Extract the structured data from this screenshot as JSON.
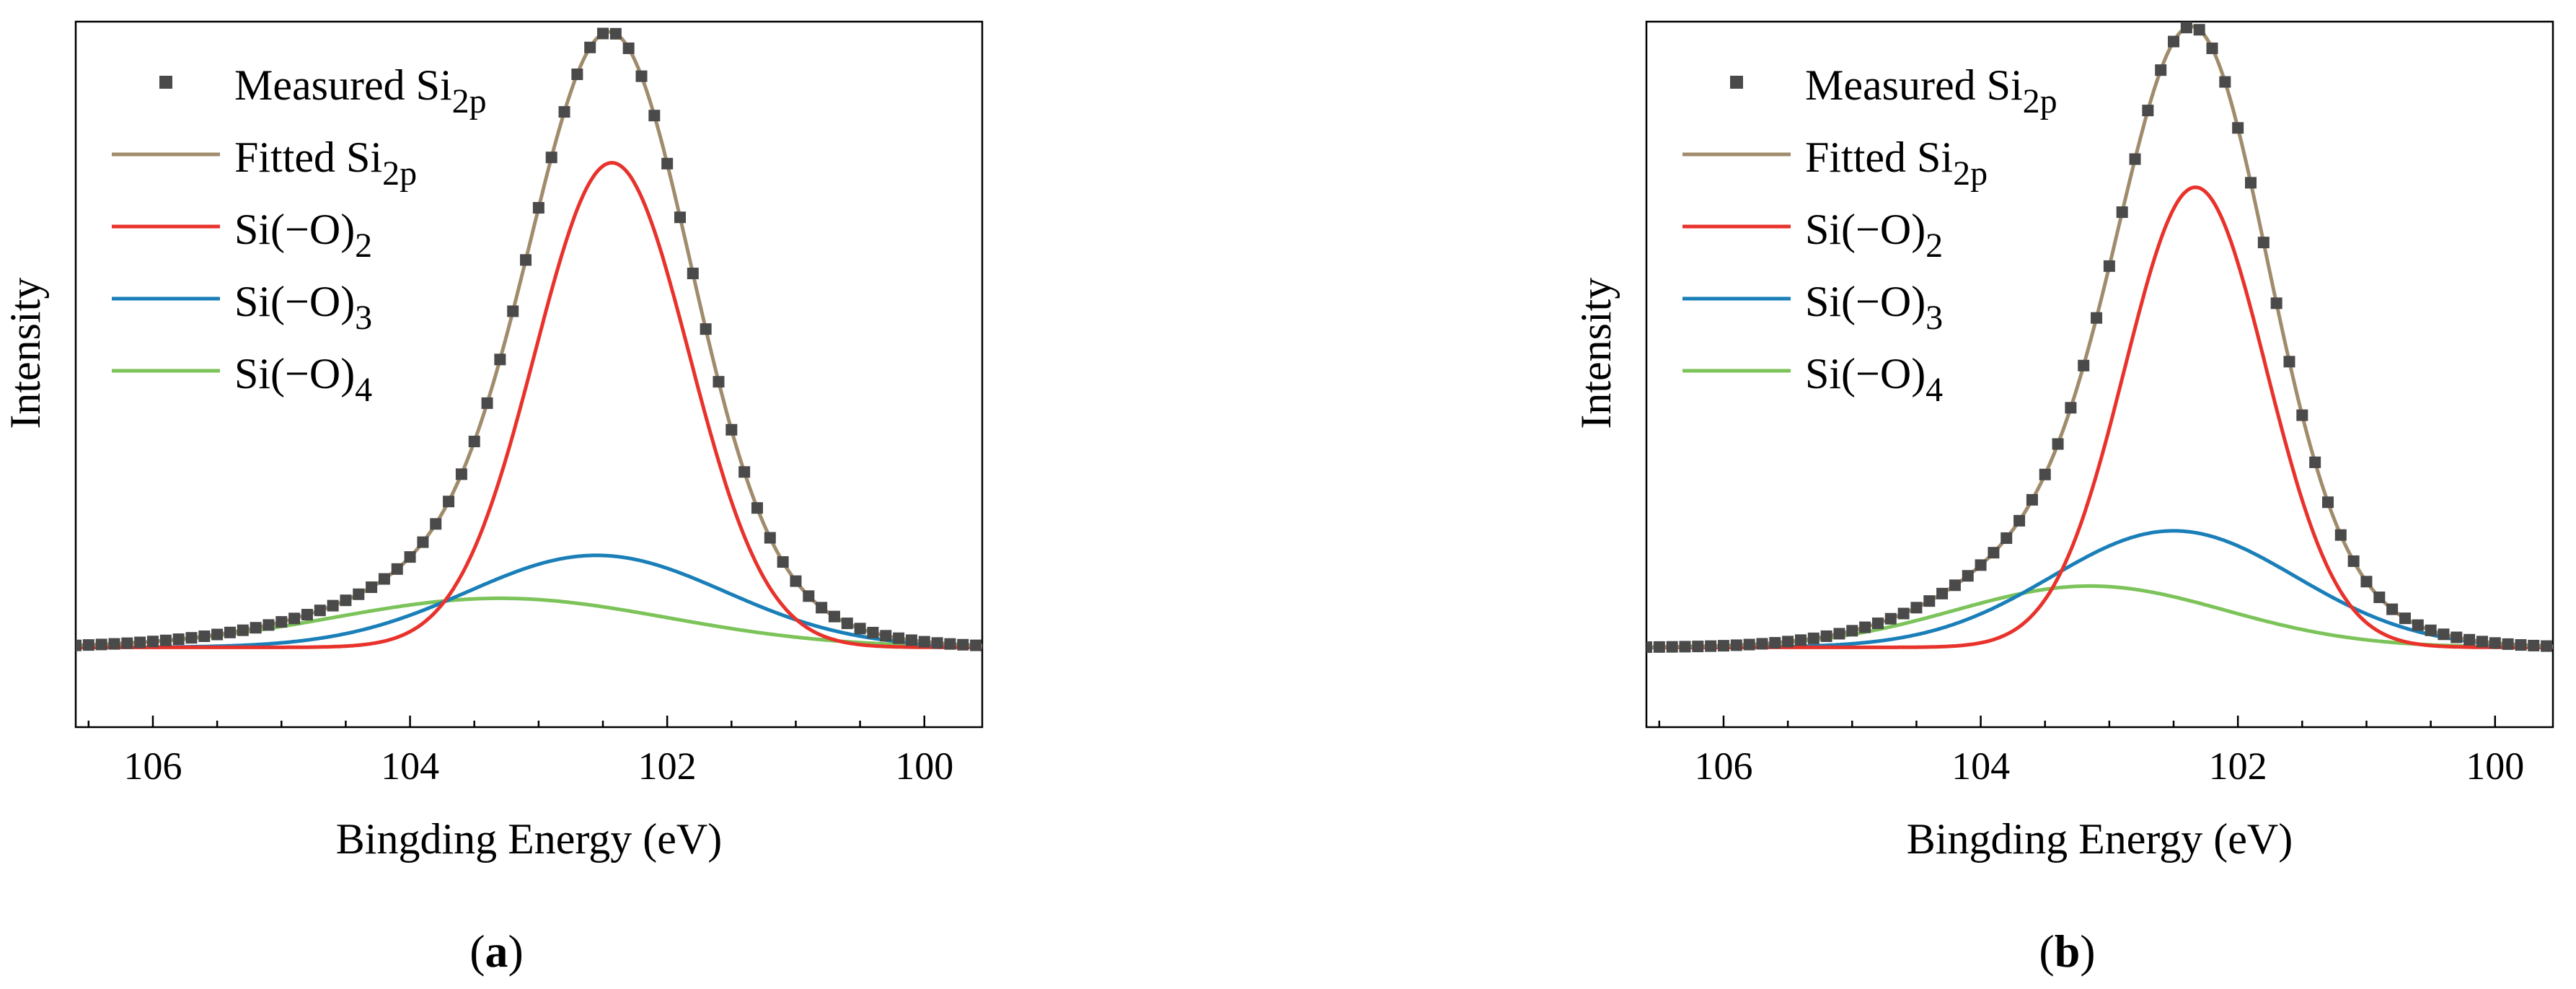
{
  "panels": [
    {
      "id": "a",
      "caption_open": "(",
      "caption_letter": "a",
      "caption_close": ")"
    },
    {
      "id": "b",
      "caption_open": "(",
      "caption_letter": "b",
      "caption_close": ")"
    }
  ],
  "legend": {
    "measured_prefix": "Measured Si",
    "measured_sub": "2p",
    "fitted_prefix": "Fitted Si",
    "fitted_sub": "2p",
    "c2_prefix": "Si(−O)",
    "c2_sub": "2",
    "c3_prefix": "Si(−O)",
    "c3_sub": "3",
    "c4_prefix": "Si(−O)",
    "c4_sub": "4"
  },
  "colors": {
    "measured": "#4a4a4a",
    "fitted": "#a08c6c",
    "si_o2": "#e8322b",
    "si_o3": "#1a7fb8",
    "si_o4": "#7cc35a"
  },
  "chart_data": [
    {
      "type": "line",
      "panel": "a",
      "xlabel": "Bingding Energy (eV)",
      "ylabel": "Intensity",
      "xlim": [
        106.6,
        99.55
      ],
      "ylim": [
        -0.13,
        1.02
      ],
      "x_reversed": true,
      "x_ticks": [
        106,
        104,
        102,
        100
      ],
      "y_ticks_shown": false,
      "legend_position": "top-left",
      "series": [
        {
          "name": "Si(−O)2",
          "role": "si_o2",
          "model": "gaussian",
          "center": 102.43,
          "amplitude": 0.79,
          "sigma": 0.6
        },
        {
          "name": "Si(−O)3",
          "role": "si_o3",
          "model": "gaussian",
          "center": 102.55,
          "amplitude": 0.15,
          "sigma": 1.0
        },
        {
          "name": "Si(−O)4",
          "role": "si_o4",
          "model": "gaussian",
          "center": 103.3,
          "amplitude": 0.08,
          "sigma": 1.3
        },
        {
          "name": "Fitted Si2p",
          "role": "fitted",
          "model": "sum"
        },
        {
          "name": "Measured Si2p",
          "role": "measured",
          "model": "points",
          "x_start": 106.6,
          "x_step": -0.1,
          "count": 71
        }
      ]
    },
    {
      "type": "line",
      "panel": "b",
      "xlabel": "Bingding Energy (eV)",
      "ylabel": "Intensity",
      "xlim": [
        106.6,
        99.55
      ],
      "ylim": [
        -0.13,
        1.02
      ],
      "x_reversed": true,
      "x_ticks": [
        106,
        104,
        102,
        100
      ],
      "y_ticks_shown": false,
      "legend_position": "top-left",
      "series": [
        {
          "name": "Si(−O)2",
          "role": "si_o2",
          "model": "gaussian",
          "center": 102.33,
          "amplitude": 0.75,
          "sigma": 0.55
        },
        {
          "name": "Si(−O)3",
          "role": "si_o3",
          "model": "gaussian",
          "center": 102.5,
          "amplitude": 0.19,
          "sigma": 0.95
        },
        {
          "name": "Si(−O)4",
          "role": "si_o4",
          "model": "gaussian",
          "center": 103.15,
          "amplitude": 0.1,
          "sigma": 1.05
        },
        {
          "name": "Fitted Si2p",
          "role": "fitted",
          "model": "sum"
        },
        {
          "name": "Measured Si2p",
          "role": "measured",
          "model": "points",
          "x_start": 106.6,
          "x_step": -0.1,
          "count": 71
        }
      ]
    }
  ]
}
